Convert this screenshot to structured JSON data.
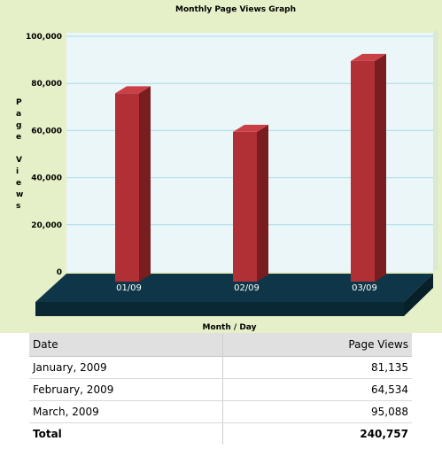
{
  "chart_data": {
    "type": "bar",
    "title": "Monthly Page Views Graph",
    "xlabel": "Month / Day",
    "ylabel": "Page Views",
    "categories": [
      "01/09",
      "02/09",
      "03/09"
    ],
    "values": [
      81135,
      64534,
      95088
    ],
    "ylim": [
      0,
      100000
    ],
    "yticks": [
      0,
      20000,
      40000,
      60000,
      80000,
      100000
    ],
    "ytick_labels": [
      "0",
      "20,000",
      "40,000",
      "60,000",
      "80,000",
      "100,000"
    ],
    "grid": true,
    "colors": {
      "bar_front": "#b03035",
      "bar_side": "#7a1d20",
      "bar_top": "#c94046",
      "floor": "#0f3648",
      "plot_bg": "#eaf6f8",
      "grid": "#a9dcea"
    }
  },
  "table": {
    "headers": {
      "date": "Date",
      "views": "Page Views"
    },
    "rows": [
      {
        "date": "January, 2009",
        "views": "81,135"
      },
      {
        "date": "February, 2009",
        "views": "64,534"
      },
      {
        "date": "March, 2009",
        "views": "95,088"
      }
    ],
    "total": {
      "label": "Total",
      "views": "240,757"
    }
  }
}
